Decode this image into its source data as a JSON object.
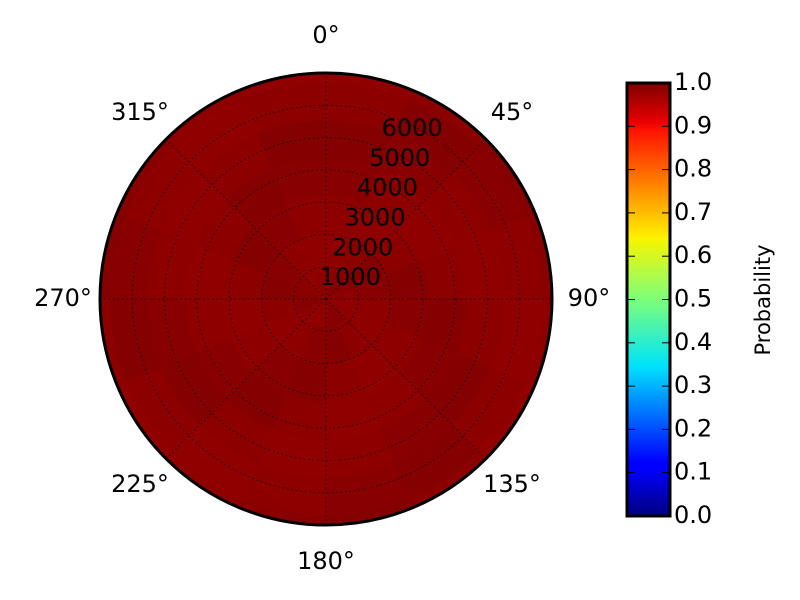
{
  "chart_data": {
    "type": "heatmap",
    "projection": "polar",
    "theta_zero_location": "top",
    "theta_direction": "clockwise",
    "theta_tick_labels": [
      "0°",
      "45°",
      "90°",
      "135°",
      "180°",
      "225°",
      "270°",
      "315°"
    ],
    "r_tick_labels": [
      "1000",
      "2000",
      "3000",
      "4000",
      "5000",
      "6000"
    ],
    "r_ticks": [
      1000,
      2000,
      3000,
      4000,
      5000,
      6000
    ],
    "rlim": [
      0,
      7000
    ],
    "grid": true,
    "values_range": [
      0.95,
      1.0
    ],
    "cell_value": 0.98,
    "colormap": "jet",
    "colorbar": {
      "label": "Probability",
      "ticks": [
        0.0,
        0.1,
        0.2,
        0.3,
        0.4,
        0.5,
        0.6,
        0.7,
        0.8,
        0.9,
        1.0
      ],
      "tick_labels": [
        "0.0",
        "0.1",
        "0.2",
        "0.3",
        "0.4",
        "0.5",
        "0.6",
        "0.7",
        "0.8",
        "0.9",
        "1.0"
      ],
      "vmin": 0.0,
      "vmax": 1.0,
      "placement": "right"
    }
  }
}
